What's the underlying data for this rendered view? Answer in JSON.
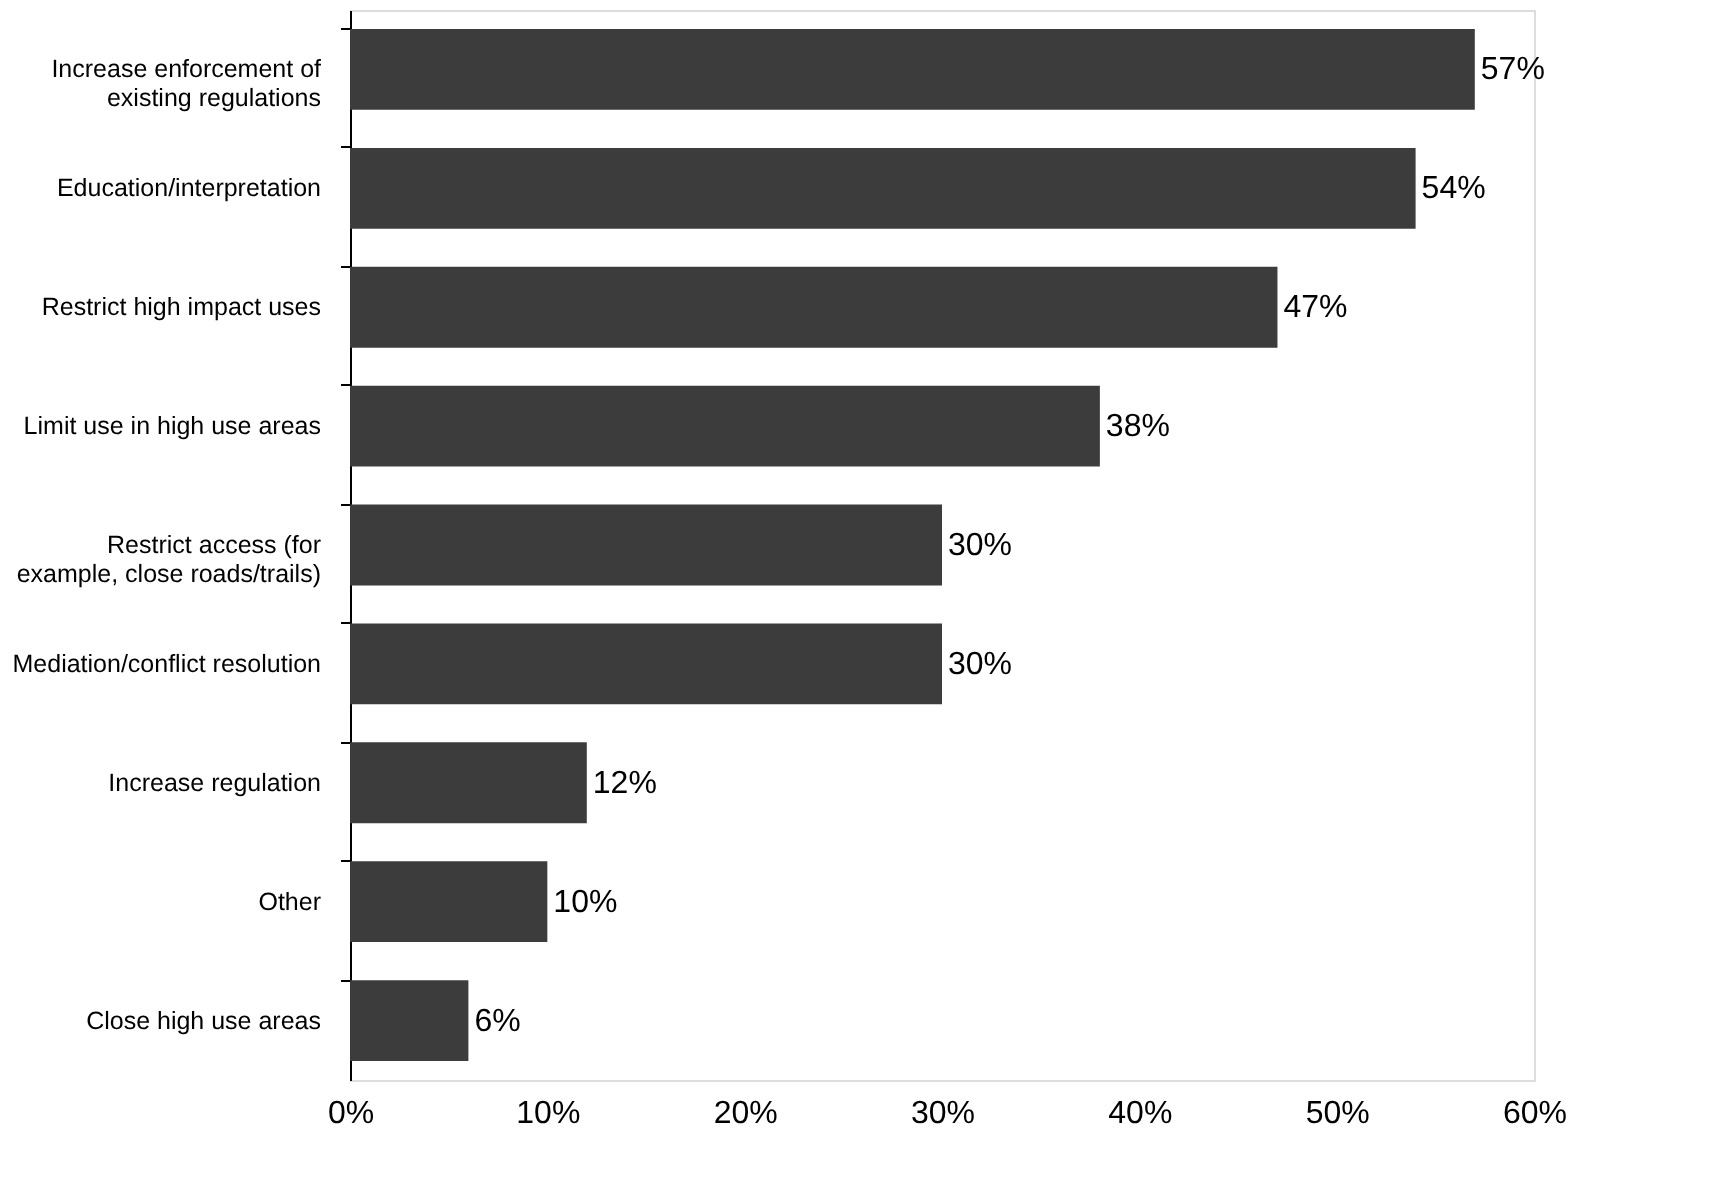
{
  "chart_data": {
    "type": "bar",
    "orientation": "horizontal",
    "categories": [
      "Increase enforcement of\nexisting regulations",
      "Education/interpretation",
      "Restrict high impact uses",
      "Limit use in high use areas",
      "Restrict access (for\nexample, close roads/trails)",
      "Mediation/conflict resolution",
      "Increase regulation",
      "Other",
      "Close high use areas"
    ],
    "values": [
      57,
      54,
      47,
      38,
      30,
      30,
      12,
      10,
      6
    ],
    "value_labels": [
      "57%",
      "54%",
      "47%",
      "38%",
      "30%",
      "30%",
      "12%",
      "10%",
      "6%"
    ],
    "color": "#3c3c3c",
    "xlim": [
      0,
      60
    ],
    "xticks": [
      {
        "value": 0,
        "label": "0%"
      },
      {
        "value": 10,
        "label": "10%"
      },
      {
        "value": 20,
        "label": "20%"
      },
      {
        "value": 30,
        "label": "30%"
      },
      {
        "value": 40,
        "label": "40%"
      },
      {
        "value": 50,
        "label": "50%"
      },
      {
        "value": 60,
        "label": "60%"
      }
    ],
    "grid": false
  }
}
